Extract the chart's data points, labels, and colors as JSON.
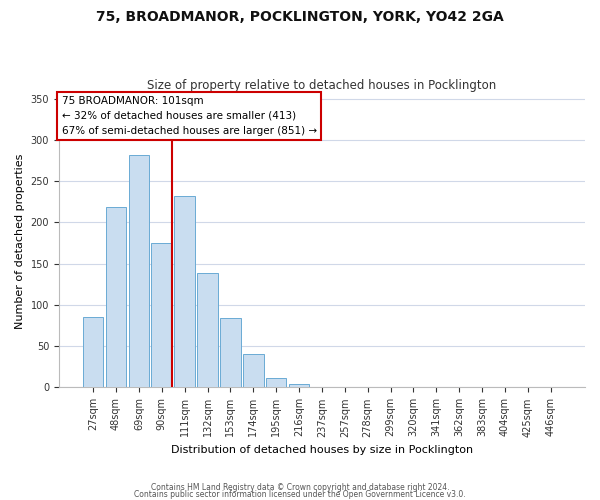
{
  "title": "75, BROADMANOR, POCKLINGTON, YORK, YO42 2GA",
  "subtitle": "Size of property relative to detached houses in Pocklington",
  "xlabel": "Distribution of detached houses by size in Pocklington",
  "ylabel": "Number of detached properties",
  "footnote1": "Contains HM Land Registry data © Crown copyright and database right 2024.",
  "footnote2": "Contains public sector information licensed under the Open Government Licence v3.0.",
  "bar_labels": [
    "27sqm",
    "48sqm",
    "69sqm",
    "90sqm",
    "111sqm",
    "132sqm",
    "153sqm",
    "174sqm",
    "195sqm",
    "216sqm",
    "237sqm",
    "257sqm",
    "278sqm",
    "299sqm",
    "320sqm",
    "341sqm",
    "362sqm",
    "383sqm",
    "404sqm",
    "425sqm",
    "446sqm"
  ],
  "bar_values": [
    85,
    219,
    282,
    175,
    232,
    139,
    84,
    41,
    11,
    4,
    0,
    0,
    0,
    0,
    0,
    0,
    0,
    0,
    0,
    0,
    1
  ],
  "bar_color": "#c9ddf0",
  "bar_edge_color": "#6aaad4",
  "vline_bar_index": 3,
  "vline_color": "#cc0000",
  "ylim": [
    0,
    355
  ],
  "ann_line1": "75 BROADMANOR: 101sqm",
  "ann_line2": "← 32% of detached houses are smaller (413)",
  "ann_line3": "67% of semi-detached houses are larger (851) →",
  "ann_box_color": "#cc0000",
  "background_color": "#ffffff",
  "grid_color": "#d0d8e8"
}
